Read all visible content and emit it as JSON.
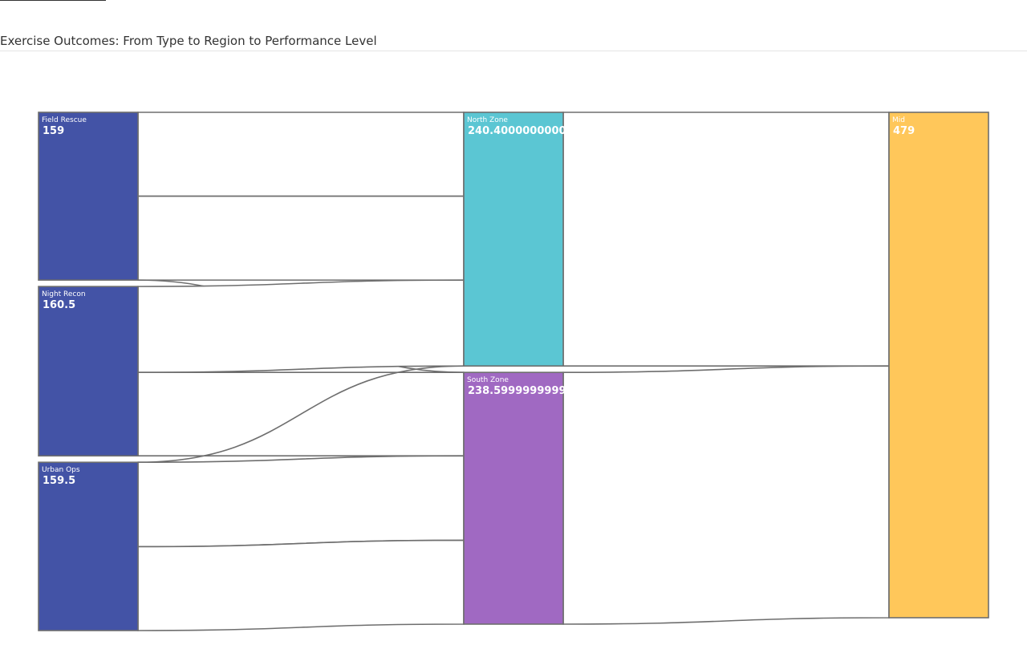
{
  "header": {
    "title": "Exercise Outcomes: From Type to Region to Performance Level"
  },
  "chart_data": {
    "type": "sankey",
    "title": "Exercise Outcomes: From Type to Region to Performance Level",
    "colors": {
      "type": "#4353a6",
      "north": "#5bc6d3",
      "south": "#a069c2",
      "level": "#ffc75a",
      "link_stroke": "#6e6e6e",
      "node_stroke": "#6e6e6e"
    },
    "nodes": [
      {
        "id": "field_rescue",
        "name": "Field Rescue",
        "value_label": "159",
        "value": 159,
        "column": 0,
        "color": "#4353a6"
      },
      {
        "id": "night_recon",
        "name": "Night Recon",
        "value_label": "160.5",
        "value": 160.5,
        "column": 0,
        "color": "#4353a6"
      },
      {
        "id": "urban_ops",
        "name": "Urban Ops",
        "value_label": "159.5",
        "value": 159.5,
        "column": 0,
        "color": "#4353a6"
      },
      {
        "id": "north_zone",
        "name": "North Zone",
        "value_label": "240.40000000000",
        "value": 240.4,
        "column": 1,
        "color": "#5bc6d3"
      },
      {
        "id": "south_zone",
        "name": "South Zone",
        "value_label": "238.59999999999",
        "value": 238.6,
        "column": 1,
        "color": "#a069c2"
      },
      {
        "id": "mid",
        "name": "Mid",
        "value_label": "479",
        "value": 479,
        "column": 2,
        "color": "#ffc75a"
      }
    ],
    "links": [
      {
        "source": "field_rescue",
        "target": "north_zone",
        "value": 79.5
      },
      {
        "source": "field_rescue",
        "target": "north_zone",
        "value": 79.5
      },
      {
        "source": "field_rescue",
        "target": "south_zone",
        "value": 0
      },
      {
        "source": "night_recon",
        "target": "north_zone",
        "value": 81.4
      },
      {
        "source": "night_recon",
        "target": "south_zone",
        "value": 79.1
      },
      {
        "source": "urban_ops",
        "target": "north_zone",
        "value": 0
      },
      {
        "source": "urban_ops",
        "target": "south_zone",
        "value": 80.0
      },
      {
        "source": "urban_ops",
        "target": "south_zone",
        "value": 79.5
      },
      {
        "source": "north_zone",
        "target": "mid",
        "value": 240.4
      },
      {
        "source": "south_zone",
        "target": "mid",
        "value": 238.6
      }
    ]
  }
}
